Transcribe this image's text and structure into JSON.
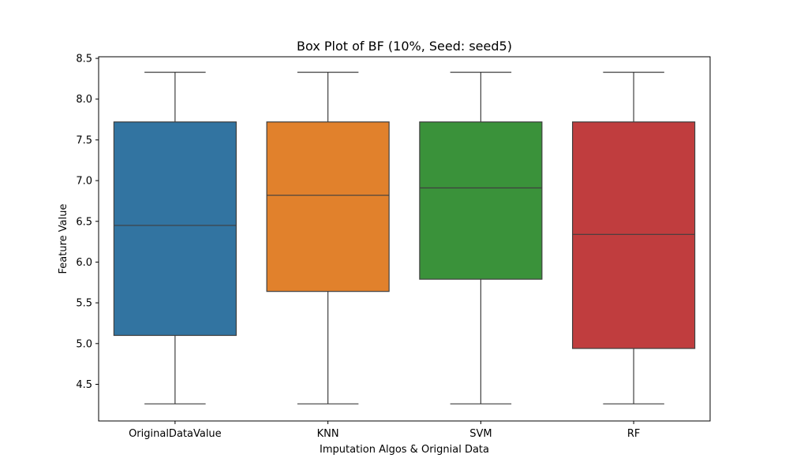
{
  "chart_data": {
    "type": "box",
    "title": "Box Plot of BF (10%, Seed: seed5)",
    "xlabel": "Imputation Algos & Orignial Data",
    "ylabel": "Feature Value",
    "ylim": [
      4.05,
      8.52
    ],
    "yticks": [
      4.5,
      5.0,
      5.5,
      6.0,
      6.5,
      7.0,
      7.5,
      8.0,
      8.5
    ],
    "ytick_labels": [
      "4.5",
      "5.0",
      "5.5",
      "6.0",
      "6.5",
      "7.0",
      "7.5",
      "8.0",
      "8.5"
    ],
    "grid": false,
    "categories": [
      "OriginalDataValue",
      "KNN",
      "SVM",
      "RF"
    ],
    "boxes": [
      {
        "name": "OriginalDataValue",
        "whislo": 4.26,
        "q1": 5.1,
        "med": 6.45,
        "q3": 7.72,
        "whishi": 8.33,
        "color": "#3274a1"
      },
      {
        "name": "KNN",
        "whislo": 4.26,
        "q1": 5.64,
        "med": 6.82,
        "q3": 7.72,
        "whishi": 8.33,
        "color": "#e1812c"
      },
      {
        "name": "SVM",
        "whislo": 4.26,
        "q1": 5.79,
        "med": 6.91,
        "q3": 7.72,
        "whishi": 8.33,
        "color": "#3a923a"
      },
      {
        "name": "RF",
        "whislo": 4.26,
        "q1": 4.94,
        "med": 6.34,
        "q3": 7.72,
        "whishi": 8.33,
        "color": "#c03d3e"
      }
    ]
  }
}
